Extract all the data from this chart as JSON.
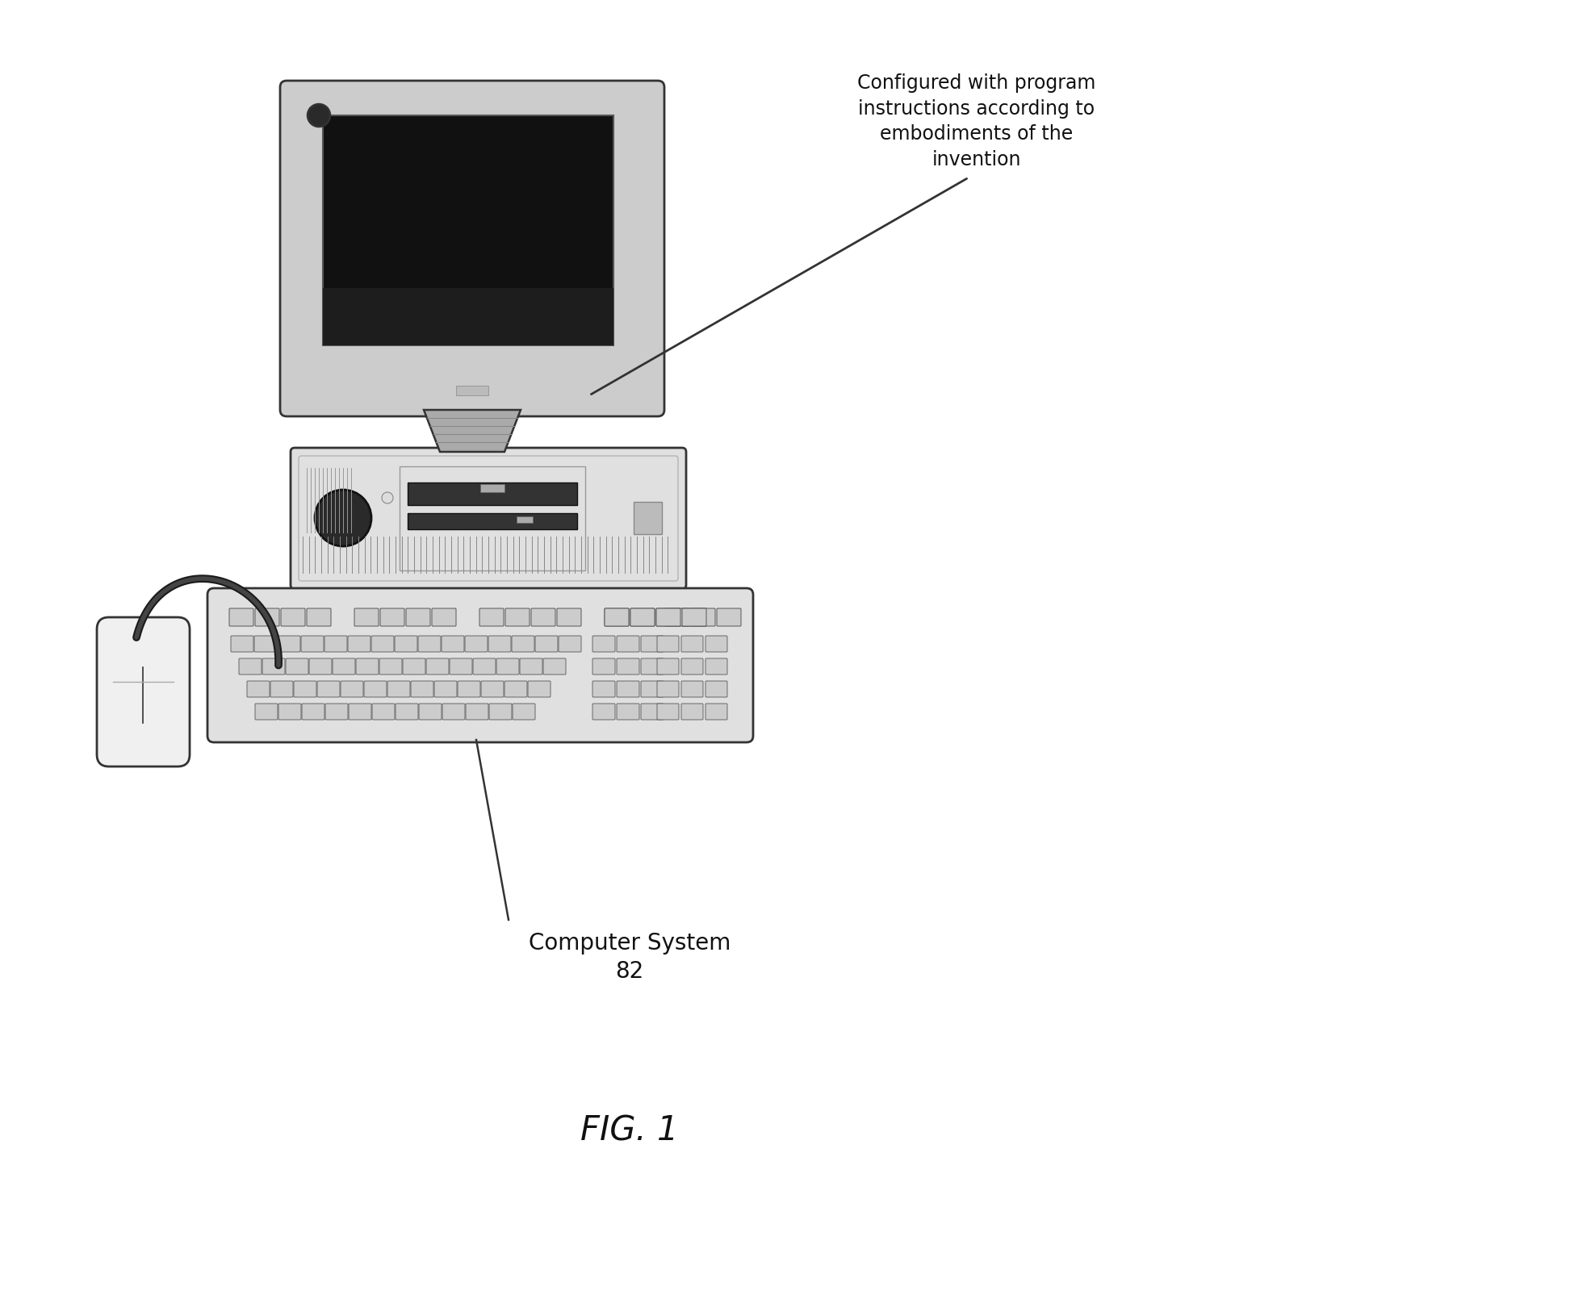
{
  "background_color": "#ffffff",
  "annotation_text": "Configured with program\ninstructions according to\nembodiments of the\ninvention",
  "label_computer_system": "Computer System",
  "label_number": "82",
  "fig_label": "FIG. 1",
  "annotation_fontsize": 17,
  "label_fontsize": 20,
  "fig_label_fontsize": 30,
  "ec": "#333333",
  "fill_light": "#cccccc",
  "fill_lighter": "#e0e0e0",
  "fill_medium": "#aaaaaa",
  "fill_dark": "#555555",
  "key_color": "#d0d0d0",
  "key_dark": "#2a2a2a",
  "screen_color": "#111111",
  "cord_color": "#1a1a1a"
}
